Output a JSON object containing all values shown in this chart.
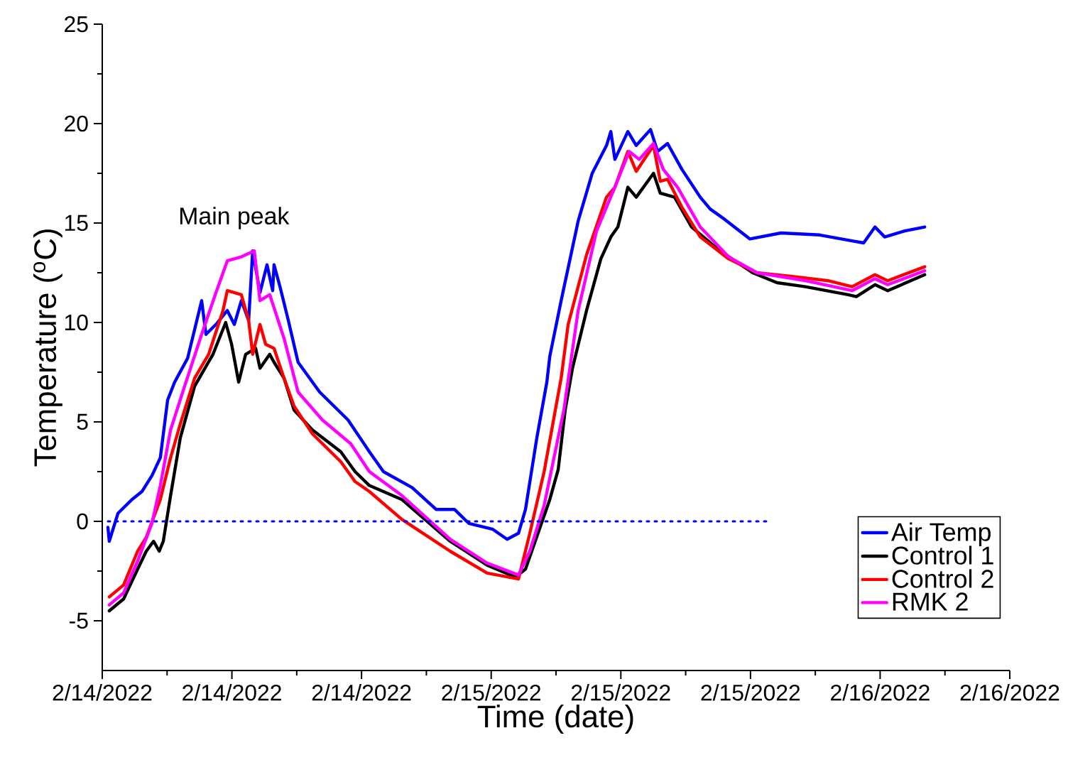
{
  "chart_data": {
    "type": "line",
    "xlabel": "Time (date)",
    "ylabel": "Temperature ($^{o}$C)",
    "xlim": [
      "2022-02-14T00:00",
      "2022-02-16T08:00"
    ],
    "ylim": [
      -7.5,
      25
    ],
    "xticks": [
      {
        "value": "2022-02-14T00:00",
        "label": "2/14/2022"
      },
      {
        "value": "2022-02-14T08:00",
        "label": "2/14/2022"
      },
      {
        "value": "2022-02-14T16:00",
        "label": "2/14/2022"
      },
      {
        "value": "2022-02-15T00:00",
        "label": "2/15/2022"
      },
      {
        "value": "2022-02-15T08:00",
        "label": "2/15/2022"
      },
      {
        "value": "2022-02-15T16:00",
        "label": "2/15/2022"
      },
      {
        "value": "2022-02-16T00:00",
        "label": "2/16/2022"
      },
      {
        "value": "2022-02-16T08:00",
        "label": "2/16/2022"
      }
    ],
    "yticks": [
      -5,
      0,
      5,
      10,
      15,
      20,
      25
    ],
    "legend": "bottom right",
    "line_style": "solid",
    "annotations": [
      "Main peak"
    ],
    "series": [
      {
        "name": "Air Temp",
        "color": "#0000ff",
        "x": [
          "2022-02-14T00:21",
          "2022-02-14T00:26",
          "2022-02-14T00:58",
          "2022-02-14T01:50",
          "2022-02-14T02:27",
          "2022-02-14T03:04",
          "2022-02-14T03:35",
          "2022-02-14T04:02",
          "2022-02-14T04:28",
          "2022-02-14T05:16",
          "2022-02-14T06:08",
          "2022-02-14T06:24",
          "2022-02-14T07:01",
          "2022-02-14T07:43",
          "2022-02-14T08:09",
          "2022-02-14T08:35",
          "2022-02-14T09:02",
          "2022-02-14T09:17",
          "2022-02-14T09:44",
          "2022-02-14T10:10",
          "2022-02-14T10:31",
          "2022-02-14T10:36",
          "2022-02-14T10:58",
          "2022-02-14T11:29",
          "2022-02-14T12:05",
          "2022-02-14T13:25",
          "2022-02-14T15:10",
          "2022-02-14T16:29",
          "2022-02-14T17:21",
          "2022-02-14T19:07",
          "2022-02-14T20:36",
          "2022-02-14T21:44",
          "2022-02-14T22:37",
          "2022-02-15T00:06",
          "2022-02-15T00:59",
          "2022-02-15T01:41",
          "2022-02-15T02:07",
          "2022-02-15T02:49",
          "2022-02-15T03:26",
          "2022-02-15T03:37",
          "2022-02-15T04:19",
          "2022-02-15T05:22",
          "2022-02-15T06:14",
          "2022-02-15T07:07",
          "2022-02-15T07:23",
          "2022-02-15T07:38",
          "2022-02-15T08:26",
          "2022-02-15T08:57",
          "2022-02-15T09:50",
          "2022-02-15T10:16",
          "2022-02-15T10:53",
          "2022-02-15T11:46",
          "2022-02-15T12:54",
          "2022-02-15T13:31",
          "2022-02-15T14:23",
          "2022-02-15T15:58",
          "2022-02-15T17:53",
          "2022-02-15T20:16",
          "2022-02-15T22:16",
          "2022-02-15T22:59",
          "2022-02-15T23:41",
          "2022-02-16T00:17",
          "2022-02-16T01:31",
          "2022-02-16T02:45"
        ],
        "values": [
          -0.3,
          -1.0,
          0.4,
          1.1,
          1.5,
          2.3,
          3.2,
          6.1,
          7.0,
          8.2,
          11.1,
          9.4,
          9.9,
          10.6,
          9.9,
          11.1,
          10.1,
          13.6,
          11.5,
          12.9,
          11.6,
          12.9,
          11.8,
          10.1,
          8.0,
          6.5,
          5.1,
          3.5,
          2.5,
          1.7,
          0.6,
          0.6,
          -0.1,
          -0.4,
          -0.9,
          -0.6,
          0.6,
          4.2,
          7.0,
          8.3,
          11.1,
          15.1,
          17.5,
          18.9,
          19.6,
          18.2,
          19.6,
          18.9,
          19.7,
          18.6,
          19.0,
          17.7,
          16.3,
          15.7,
          15.2,
          14.2,
          14.5,
          14.4,
          14.1,
          14.0,
          14.8,
          14.3,
          14.6,
          14.8
        ]
      },
      {
        "name": "Control 1",
        "color": "#000000",
        "x": [
          "2022-02-14T00:26",
          "2022-02-14T01:19",
          "2022-02-14T02:11",
          "2022-02-14T02:43",
          "2022-02-14T03:10",
          "2022-02-14T03:31",
          "2022-02-14T03:46",
          "2022-02-14T04:13",
          "2022-02-14T04:49",
          "2022-02-14T05:42",
          "2022-02-14T06:50",
          "2022-02-14T07:37",
          "2022-02-14T07:59",
          "2022-02-14T08:25",
          "2022-02-14T08:51",
          "2022-02-14T09:28",
          "2022-02-14T09:44",
          "2022-02-14T10:20",
          "2022-02-14T10:36",
          "2022-02-14T11:13",
          "2022-02-14T11:50",
          "2022-02-14T12:58",
          "2022-02-14T14:43",
          "2022-02-14T15:36",
          "2022-02-14T16:29",
          "2022-02-14T18:29",
          "2022-02-14T21:28",
          "2022-02-14T23:45",
          "2022-02-15T01:30",
          "2022-02-15T02:07",
          "2022-02-15T03:37",
          "2022-02-15T04:08",
          "2022-02-15T04:34",
          "2022-02-15T05:01",
          "2022-02-15T05:53",
          "2022-02-15T06:46",
          "2022-02-15T07:23",
          "2022-02-15T07:49",
          "2022-02-15T08:26",
          "2022-02-15T08:57",
          "2022-02-15T10:01",
          "2022-02-15T10:26",
          "2022-02-15T11:19",
          "2022-02-15T12:22",
          "2022-02-15T14:07",
          "2022-02-15T16:08",
          "2022-02-15T17:38",
          "2022-02-15T19:23",
          "2022-02-15T22:01",
          "2022-02-15T22:32",
          "2022-02-15T23:41",
          "2022-02-16T00:28",
          "2022-02-16T02:45"
        ],
        "values": [
          -4.5,
          -3.9,
          -2.4,
          -1.5,
          -1.0,
          -1.5,
          -1.0,
          1.3,
          4.2,
          6.8,
          8.4,
          10.0,
          8.9,
          7.0,
          8.4,
          8.7,
          7.7,
          8.4,
          8.0,
          7.2,
          5.6,
          4.6,
          3.5,
          2.5,
          1.8,
          1.1,
          -1.0,
          -2.2,
          -2.8,
          -2.4,
          1.1,
          2.6,
          5.6,
          7.7,
          10.6,
          13.2,
          14.3,
          14.8,
          16.8,
          16.3,
          17.5,
          16.5,
          16.3,
          14.8,
          13.6,
          12.5,
          12.0,
          11.8,
          11.4,
          11.3,
          11.9,
          11.6,
          12.4
        ]
      },
      {
        "name": "Control 2",
        "color": "#ff0000",
        "x": [
          "2022-02-14T00:26",
          "2022-02-14T01:19",
          "2022-02-14T02:11",
          "2022-02-14T02:43",
          "2022-02-14T03:35",
          "2022-02-14T04:13",
          "2022-02-14T04:49",
          "2022-02-14T05:42",
          "2022-02-14T06:34",
          "2022-02-14T07:27",
          "2022-02-14T07:43",
          "2022-02-14T08:35",
          "2022-02-14T09:02",
          "2022-02-14T09:17",
          "2022-02-14T09:44",
          "2022-02-14T10:05",
          "2022-02-14T10:36",
          "2022-02-14T11:13",
          "2022-02-14T11:50",
          "2022-02-14T12:58",
          "2022-02-14T14:43",
          "2022-02-14T15:36",
          "2022-02-14T16:29",
          "2022-02-14T18:29",
          "2022-02-14T21:28",
          "2022-02-14T23:45",
          "2022-02-15T01:41",
          "2022-02-15T02:23",
          "2022-02-15T03:16",
          "2022-02-15T04:19",
          "2022-02-15T04:45",
          "2022-02-15T05:53",
          "2022-02-15T07:07",
          "2022-02-15T07:38",
          "2022-02-15T08:26",
          "2022-02-15T08:57",
          "2022-02-15T10:01",
          "2022-02-15T10:26",
          "2022-02-15T10:53",
          "2022-02-15T11:46",
          "2022-02-15T12:54",
          "2022-02-15T14:39",
          "2022-02-15T16:24",
          "2022-02-15T18:46",
          "2022-02-15T20:47",
          "2022-02-15T22:16",
          "2022-02-15T23:41",
          "2022-02-16T00:28",
          "2022-02-16T02:45"
        ],
        "values": [
          -3.8,
          -3.2,
          -1.5,
          -0.8,
          1.1,
          3.2,
          4.9,
          7.2,
          8.4,
          10.6,
          11.6,
          11.4,
          10.1,
          8.4,
          9.9,
          8.9,
          8.7,
          7.2,
          5.8,
          4.4,
          3.0,
          2.0,
          1.5,
          0.1,
          -1.5,
          -2.6,
          -2.9,
          -0.6,
          2.5,
          7.2,
          9.9,
          13.4,
          16.3,
          16.8,
          18.6,
          17.6,
          18.9,
          17.1,
          17.2,
          15.8,
          14.3,
          13.2,
          12.5,
          12.3,
          12.1,
          11.8,
          12.4,
          12.1,
          12.8
        ]
      },
      {
        "name": "RMK 2",
        "color": "#ff00ff",
        "x": [
          "2022-02-14T00:26",
          "2022-02-14T01:19",
          "2022-02-14T02:11",
          "2022-02-14T03:04",
          "2022-02-14T03:35",
          "2022-02-14T04:13",
          "2022-02-14T05:05",
          "2022-02-14T06:08",
          "2022-02-14T07:01",
          "2022-02-14T07:43",
          "2022-02-14T08:35",
          "2022-02-14T09:23",
          "2022-02-14T09:44",
          "2022-02-14T10:20",
          "2022-02-14T11:13",
          "2022-02-14T12:05",
          "2022-02-14T13:35",
          "2022-02-14T15:20",
          "2022-02-14T16:29",
          "2022-02-14T18:29",
          "2022-02-14T21:28",
          "2022-02-14T23:45",
          "2022-02-15T01:41",
          "2022-02-15T02:23",
          "2022-02-15T03:16",
          "2022-02-15T04:29",
          "2022-02-15T05:22",
          "2022-02-15T06:30",
          "2022-02-15T07:38",
          "2022-02-15T08:31",
          "2022-02-15T09:08",
          "2022-02-15T10:01",
          "2022-02-15T10:37",
          "2022-02-15T11:30",
          "2022-02-15T12:54",
          "2022-02-15T14:39",
          "2022-02-15T16:24",
          "2022-02-15T19:23",
          "2022-02-15T22:16",
          "2022-02-15T23:41",
          "2022-02-16T00:28",
          "2022-02-16T02:45"
        ],
        "values": [
          -4.2,
          -3.6,
          -2.0,
          -0.1,
          1.8,
          4.6,
          6.8,
          9.4,
          11.5,
          13.1,
          13.3,
          13.6,
          11.1,
          11.4,
          9.2,
          6.5,
          5.1,
          3.9,
          2.5,
          1.3,
          -0.9,
          -2.1,
          -2.7,
          -1.5,
          0.8,
          5.6,
          10.6,
          14.6,
          16.8,
          18.6,
          18.2,
          19.0,
          17.7,
          16.8,
          14.8,
          13.3,
          12.5,
          12.1,
          11.6,
          12.2,
          11.9,
          12.6
        ]
      },
      {
        "color": "#0000ff",
        "line_style": "dotted",
        "x": [
          "2022-02-14T00:21",
          "2022-02-15T17:18"
        ],
        "values": [
          0,
          0
        ]
      }
    ]
  }
}
